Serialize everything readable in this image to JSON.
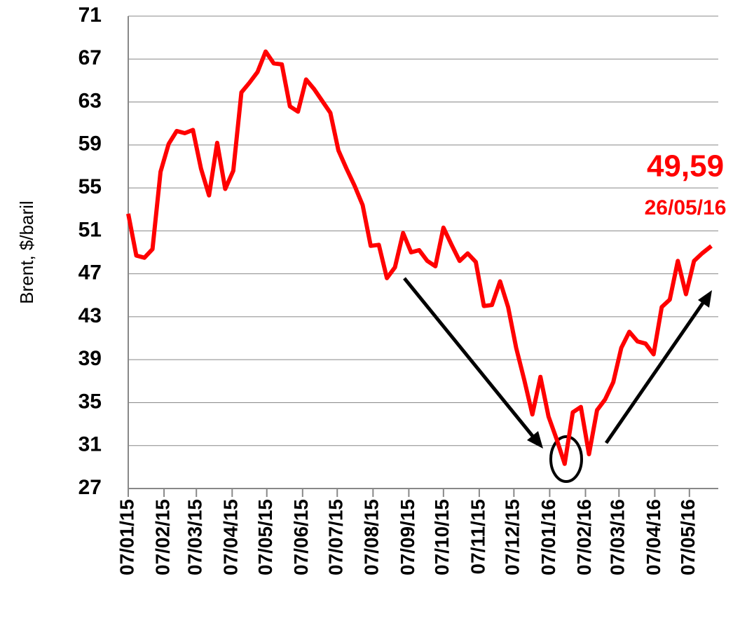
{
  "chart_data": {
    "type": "line",
    "y_label": "Brent, $/baril",
    "x": [
      "07/01/15",
      "14/01/15",
      "21/01/15",
      "28/01/15",
      "04/02/15",
      "11/02/15",
      "18/02/15",
      "25/02/15",
      "04/03/15",
      "11/03/15",
      "18/03/15",
      "25/03/15",
      "01/04/15",
      "08/04/15",
      "15/04/15",
      "22/04/15",
      "29/04/15",
      "06/05/15",
      "13/05/15",
      "20/05/15",
      "27/05/15",
      "03/06/15",
      "10/06/15",
      "17/06/15",
      "24/06/15",
      "01/07/15",
      "08/07/15",
      "15/07/15",
      "22/07/15",
      "29/07/15",
      "05/08/15",
      "12/08/15",
      "19/08/15",
      "26/08/15",
      "02/09/15",
      "09/09/15",
      "16/09/15",
      "23/09/15",
      "30/09/15",
      "07/10/15",
      "14/10/15",
      "21/10/15",
      "28/10/15",
      "04/11/15",
      "11/11/15",
      "18/11/15",
      "25/11/15",
      "02/12/15",
      "09/12/15",
      "16/12/15",
      "23/12/15",
      "30/12/15",
      "06/01/16",
      "13/01/16",
      "20/01/16",
      "27/01/16",
      "03/02/16",
      "10/02/16",
      "17/02/16",
      "24/02/16",
      "02/03/16",
      "09/03/16",
      "16/03/16",
      "23/03/16",
      "30/03/16",
      "06/04/16",
      "13/04/16",
      "20/04/16",
      "27/04/16",
      "04/05/16",
      "11/05/16",
      "18/05/16",
      "26/05/16"
    ],
    "series": [
      {
        "name": "Brent",
        "color": "#ff0000",
        "values": [
          52.6,
          48.7,
          48.5,
          49.3,
          56.5,
          59.1,
          60.3,
          60.1,
          60.4,
          56.8,
          54.3,
          59.2,
          54.9,
          56.6,
          63.9,
          64.8,
          65.8,
          67.7,
          66.6,
          66.5,
          62.6,
          62.1,
          65.1,
          64.2,
          63.1,
          62.0,
          58.5,
          56.8,
          55.2,
          53.4,
          49.6,
          49.7,
          46.6,
          47.6,
          50.8,
          49.0,
          49.2,
          48.2,
          47.7,
          51.3,
          49.7,
          48.2,
          48.9,
          48.1,
          44.0,
          44.1,
          46.3,
          43.9,
          40.1,
          37.1,
          33.9,
          37.4,
          33.7,
          31.6,
          29.3,
          34.1,
          34.6,
          30.2,
          34.3,
          35.3,
          36.9,
          40.1,
          41.6,
          40.7,
          40.5,
          39.5,
          43.9,
          44.6,
          48.2,
          45.1,
          48.2,
          48.9,
          49.59
        ]
      }
    ],
    "xlim": [
      "07/01/15",
      "01/06/16"
    ],
    "xticks": [
      "07/01/15",
      "07/02/15",
      "07/03/15",
      "07/04/15",
      "07/05/15",
      "07/06/15",
      "07/07/15",
      "07/08/15",
      "07/09/15",
      "07/10/15",
      "07/11/15",
      "07/12/15",
      "07/01/16",
      "07/02/16",
      "07/03/16",
      "07/04/16",
      "07/05/16"
    ],
    "ylim": [
      27,
      71
    ],
    "yticks": [
      27,
      31,
      35,
      39,
      43,
      47,
      51,
      55,
      59,
      63,
      67,
      71
    ],
    "grid": true,
    "annotations": [
      "49,59",
      "26/05/16"
    ]
  }
}
